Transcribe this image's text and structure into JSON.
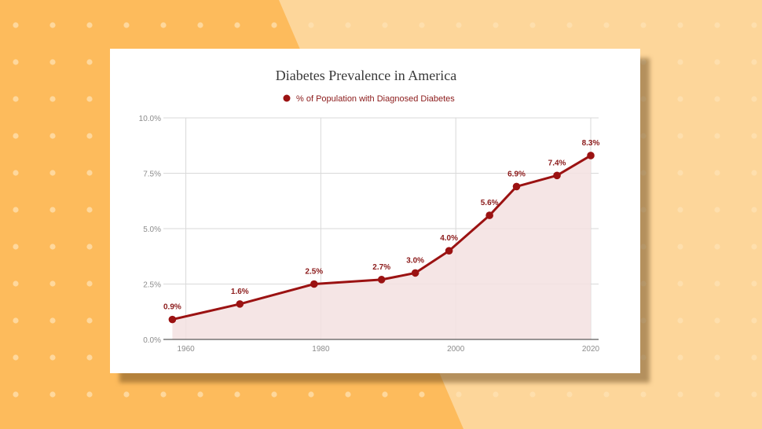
{
  "colors": {
    "background_left": "#fdbb5c",
    "background_right": "#fdd69a",
    "dot": "#fde2b3",
    "card": "#ffffff",
    "series": "#9b1212",
    "area": "#f3e1e1",
    "grid": "#d9d9d9"
  },
  "chart_data": {
    "type": "line",
    "title": "Diabetes Prevalence in America",
    "legend": "top",
    "grid": true,
    "area_fill": true,
    "x_ticks": [
      "1960",
      "1980",
      "2000",
      "2020"
    ],
    "y_ticks": [
      "0.0%",
      "2.5%",
      "5.0%",
      "7.5%",
      "10.0%"
    ],
    "xlim": [
      1959,
      2020
    ],
    "ylim": [
      0,
      10
    ],
    "series": [
      {
        "name": "% of Population with Diagnosed Diabetes",
        "x": [
          1958,
          1968,
          1979,
          1989,
          1994,
          1999,
          2005,
          2009,
          2015,
          2020
        ],
        "values": [
          0.9,
          1.6,
          2.5,
          2.7,
          3.0,
          4.0,
          5.6,
          6.9,
          7.4,
          8.3
        ],
        "labels": [
          "0.9%",
          "1.6%",
          "2.5%",
          "2.7%",
          "3.0%",
          "4.0%",
          "5.6%",
          "6.9%",
          "7.4%",
          "8.3%"
        ]
      }
    ]
  }
}
